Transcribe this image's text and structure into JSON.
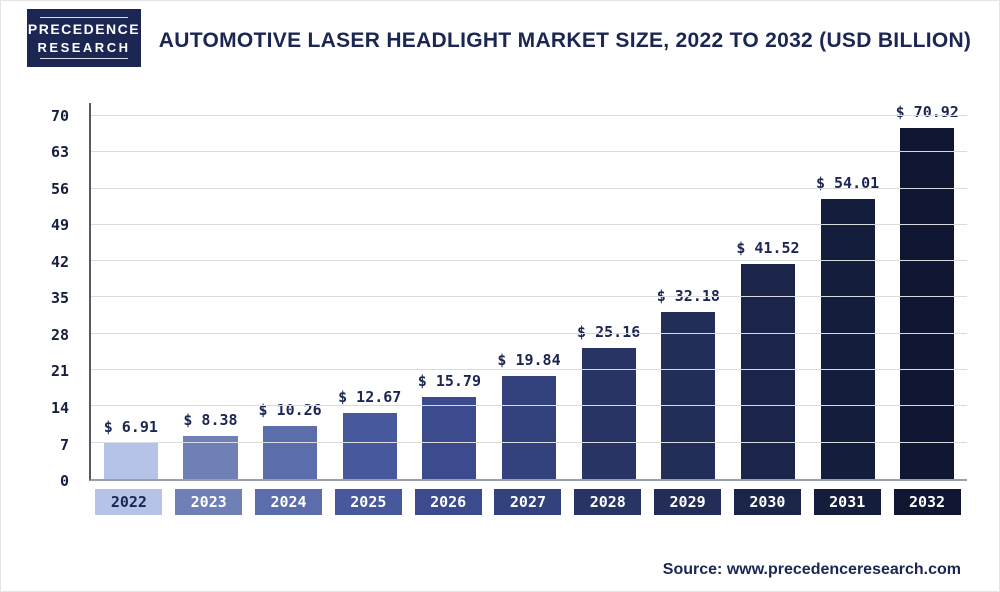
{
  "logo": {
    "line1": "PRECEDENCE",
    "line2": "RESEARCH"
  },
  "header": {
    "title": "AUTOMOTIVE LASER HEADLIGHT MARKET SIZE, 2022 TO 2032 (USD BILLION)"
  },
  "source": {
    "label": "Source: www.precedenceresearch.com"
  },
  "chart_data": {
    "type": "bar",
    "title": "Automotive Laser Headlight Market Size, 2022 to 2032 (USD Billion)",
    "categories": [
      "2022",
      "2023",
      "2024",
      "2025",
      "2026",
      "2027",
      "2028",
      "2029",
      "2030",
      "2031",
      "2032"
    ],
    "values": [
      6.91,
      8.38,
      10.26,
      12.67,
      15.79,
      19.84,
      25.16,
      32.18,
      41.52,
      54.01,
      70.92
    ],
    "value_labels": [
      "$ 6.91",
      "$ 8.38",
      "$ 10.26",
      "$ 12.67",
      "$ 15.79",
      "$ 19.84",
      "$ 25.16",
      "$ 32.18",
      "$ 41.52",
      "$ 54.01",
      "$ 70.92"
    ],
    "bar_colors": [
      "#b5c3e9",
      "#6e80b5",
      "#5b6dab",
      "#47599c",
      "#3b4b8d",
      "#33427d",
      "#273464",
      "#222d58",
      "#1b2549",
      "#141d3b",
      "#0f1732"
    ],
    "label_text_colors": [
      "#1b2653",
      "#ffffff",
      "#ffffff",
      "#ffffff",
      "#ffffff",
      "#ffffff",
      "#ffffff",
      "#ffffff",
      "#ffffff",
      "#ffffff",
      "#ffffff"
    ],
    "ylabel": "",
    "xlabel": "",
    "ylim": [
      0,
      70
    ],
    "yticks": [
      0,
      7,
      14,
      21,
      28,
      35,
      42,
      49,
      56,
      63,
      70
    ],
    "grid": "horizontal",
    "legend": "none",
    "accent_color": "#1b2653"
  }
}
